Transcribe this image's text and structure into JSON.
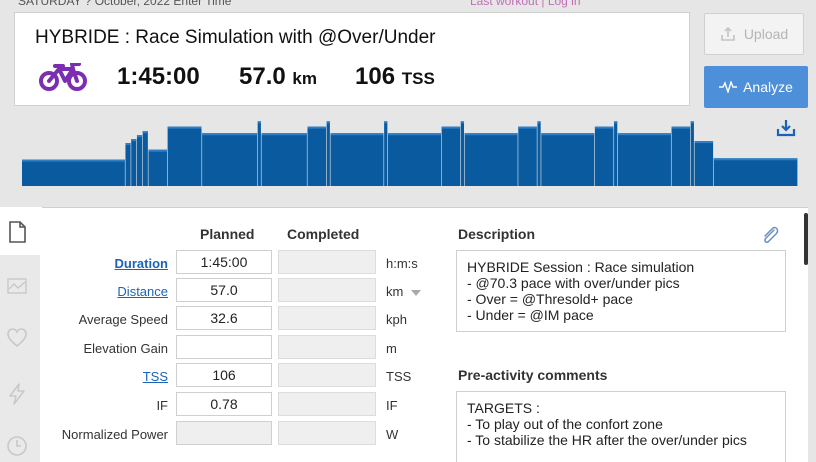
{
  "top_strip": {
    "left": "SATURDAY ? October, 2022  Enter Time",
    "right": "Last workout | Log in"
  },
  "workout": {
    "title": "HYBRIDE : Race Simulation with @Over/Under",
    "sport_icon": "bike-icon",
    "duration": "1:45:00",
    "distance_value": "57.0",
    "distance_unit": "km",
    "tss_value": "106",
    "tss_unit": "TSS"
  },
  "buttons": {
    "upload": "Upload",
    "analyze": "Analyze"
  },
  "icons": {
    "upload": "upload-icon",
    "analyze": "pulse-icon",
    "download": "download-icon",
    "attachment": "paperclip-icon"
  },
  "colors": {
    "bar_dark": "#0a5aa0",
    "bar_light": "#2f7fc8",
    "analyze_button": "#4e8fd9",
    "link": "#1a63b8",
    "bike_icon": "#7b2fb0"
  },
  "workout_profile": {
    "segments": [
      {
        "dur": 108,
        "level": 0.4
      },
      {
        "dur": 6,
        "level": 0.65
      },
      {
        "dur": 6,
        "level": 0.71
      },
      {
        "dur": 6,
        "level": 0.77
      },
      {
        "dur": 6,
        "level": 0.83
      },
      {
        "dur": 20,
        "level": 0.55
      },
      {
        "dur": 36,
        "level": 0.9
      },
      {
        "dur": 58,
        "level": 0.8
      },
      {
        "dur": 4,
        "level": 0.98
      },
      {
        "dur": 48,
        "level": 0.8
      },
      {
        "dur": 20,
        "level": 0.9
      },
      {
        "dur": 4,
        "level": 0.98
      },
      {
        "dur": 56,
        "level": 0.8
      },
      {
        "dur": 4,
        "level": 0.98
      },
      {
        "dur": 56,
        "level": 0.8
      },
      {
        "dur": 20,
        "level": 0.9
      },
      {
        "dur": 4,
        "level": 0.98
      },
      {
        "dur": 56,
        "level": 0.8
      },
      {
        "dur": 20,
        "level": 0.9
      },
      {
        "dur": 4,
        "level": 0.98
      },
      {
        "dur": 56,
        "level": 0.8
      },
      {
        "dur": 20,
        "level": 0.9
      },
      {
        "dur": 4,
        "level": 0.98
      },
      {
        "dur": 56,
        "level": 0.8
      },
      {
        "dur": 20,
        "level": 0.9
      },
      {
        "dur": 4,
        "level": 0.98
      },
      {
        "dur": 20,
        "level": 0.68
      },
      {
        "dur": 88,
        "level": 0.42
      }
    ]
  },
  "table": {
    "headers": {
      "planned": "Planned",
      "completed": "Completed"
    },
    "rows": [
      {
        "label": "Duration",
        "planned": "1:45:00",
        "unit": "h:m:s"
      },
      {
        "label": "Distance",
        "planned": "57.0",
        "unit": "km"
      },
      {
        "label": "Average Speed",
        "planned": "32.6",
        "unit": "kph"
      },
      {
        "label": "Elevation Gain",
        "planned": "",
        "unit": "m"
      },
      {
        "label": "TSS",
        "planned": "106",
        "unit": "TSS"
      },
      {
        "label": "IF",
        "planned": "0.78",
        "unit": "IF"
      },
      {
        "label": "Normalized Power",
        "planned": "",
        "unit": "W"
      }
    ]
  },
  "description": {
    "heading": "Description",
    "text": "HYBRIDE Session : Race simulation\n- @70.3 pace with over/under pics\n- Over = @Thresold+ pace\n- Under = @IM pace"
  },
  "pre_activity": {
    "heading": "Pre-activity comments",
    "text": "TARGETS :\n- To play out of the confort zone\n- To stabilize the HR after the over/under pics"
  },
  "rail_icons": [
    "document-icon",
    "chart-icon",
    "heart-icon",
    "lightning-icon",
    "clock-icon"
  ]
}
